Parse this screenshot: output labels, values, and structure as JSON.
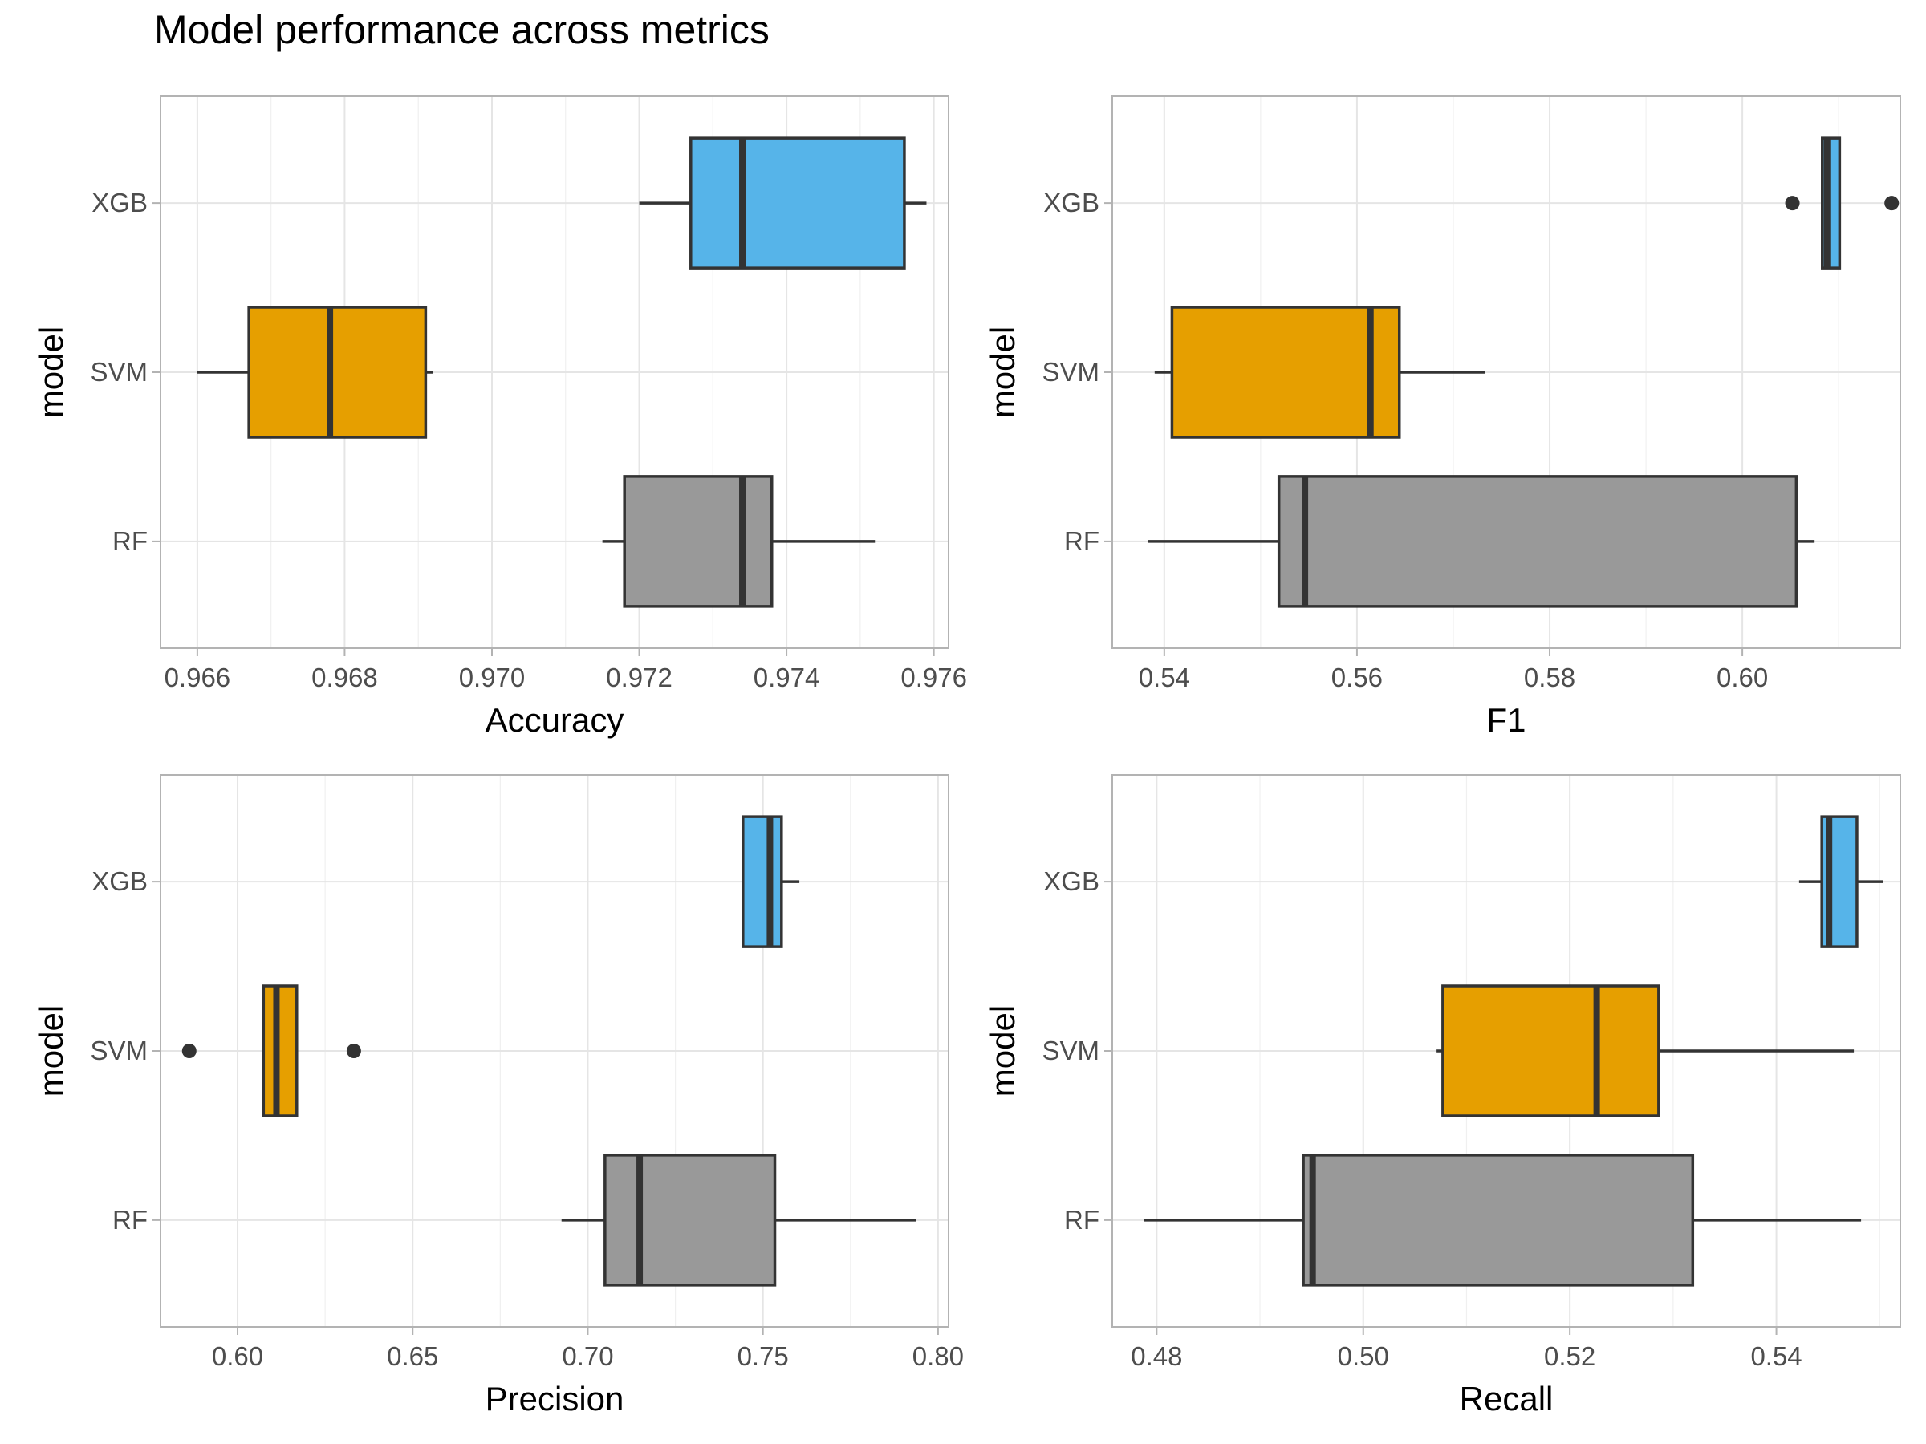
{
  "title": "Model performance across metrics",
  "colors": {
    "XGB": "#56B4E9",
    "SVM": "#E69F00",
    "RF": "#999999",
    "outline": "#333333",
    "grid": "#e5e5e5",
    "panel_border": "#b3b3b3"
  },
  "chart_data": [
    {
      "type": "box",
      "orientation": "horizontal",
      "xlabel": "Accuracy",
      "ylabel": "model",
      "xlim": [
        0.9655,
        0.9762
      ],
      "xticks": [
        0.966,
        0.968,
        0.97,
        0.972,
        0.974,
        0.976
      ],
      "xtick_labels": [
        "0.966",
        "0.968",
        "0.970",
        "0.972",
        "0.974",
        "0.976"
      ],
      "categories": [
        "XGB",
        "SVM",
        "RF"
      ],
      "boxes": [
        {
          "model": "XGB",
          "whisker_low": 0.972,
          "q1": 0.9727,
          "median": 0.9734,
          "q3": 0.9756,
          "whisker_high": 0.9759,
          "outliers": []
        },
        {
          "model": "SVM",
          "whisker_low": 0.966,
          "q1": 0.9667,
          "median": 0.9678,
          "q3": 0.9691,
          "whisker_high": 0.9692,
          "outliers": []
        },
        {
          "model": "RF",
          "whisker_low": 0.9715,
          "q1": 0.9718,
          "median": 0.9734,
          "q3": 0.9738,
          "whisker_high": 0.9752,
          "outliers": []
        }
      ]
    },
    {
      "type": "box",
      "orientation": "horizontal",
      "xlabel": "F1",
      "ylabel": "model",
      "xlim": [
        0.5346,
        0.6164
      ],
      "xticks": [
        0.54,
        0.56,
        0.58,
        0.6
      ],
      "xtick_labels": [
        "0.54",
        "0.56",
        "0.58",
        "0.60"
      ],
      "categories": [
        "XGB",
        "SVM",
        "RF"
      ],
      "boxes": [
        {
          "model": "XGB",
          "whisker_low": 0.6083,
          "q1": 0.6083,
          "median": 0.6088,
          "q3": 0.6101,
          "whisker_high": 0.6101,
          "outliers": [
            0.6052,
            0.6155
          ]
        },
        {
          "model": "SVM",
          "whisker_low": 0.539,
          "q1": 0.5408,
          "median": 0.5614,
          "q3": 0.5644,
          "whisker_high": 0.5733,
          "outliers": []
        },
        {
          "model": "RF",
          "whisker_low": 0.5383,
          "q1": 0.5519,
          "median": 0.5546,
          "q3": 0.6056,
          "whisker_high": 0.6075,
          "outliers": []
        }
      ]
    },
    {
      "type": "box",
      "orientation": "horizontal",
      "xlabel": "Precision",
      "ylabel": "model",
      "xlim": [
        0.578,
        0.803
      ],
      "xticks": [
        0.6,
        0.65,
        0.7,
        0.75,
        0.8
      ],
      "xtick_labels": [
        "0.60",
        "0.65",
        "0.70",
        "0.75",
        "0.80"
      ],
      "categories": [
        "XGB",
        "SVM",
        "RF"
      ],
      "boxes": [
        {
          "model": "XGB",
          "whisker_low": 0.7443,
          "q1": 0.7443,
          "median": 0.752,
          "q3": 0.7553,
          "whisker_high": 0.7604,
          "outliers": []
        },
        {
          "model": "SVM",
          "whisker_low": 0.6074,
          "q1": 0.6074,
          "median": 0.6111,
          "q3": 0.6169,
          "whisker_high": 0.6169,
          "outliers": [
            0.5862,
            0.6332
          ]
        },
        {
          "model": "RF",
          "whisker_low": 0.6925,
          "q1": 0.7049,
          "median": 0.7148,
          "q3": 0.7534,
          "whisker_high": 0.7938,
          "outliers": []
        }
      ]
    },
    {
      "type": "box",
      "orientation": "horizontal",
      "xlabel": "Recall",
      "ylabel": "model",
      "xlim": [
        0.4757,
        0.552
      ],
      "xticks": [
        0.48,
        0.5,
        0.52,
        0.54
      ],
      "xtick_labels": [
        "0.48",
        "0.50",
        "0.52",
        "0.54"
      ],
      "categories": [
        "XGB",
        "SVM",
        "RF"
      ],
      "boxes": [
        {
          "model": "XGB",
          "whisker_low": 0.5422,
          "q1": 0.5444,
          "median": 0.5451,
          "q3": 0.5478,
          "whisker_high": 0.5503,
          "outliers": []
        },
        {
          "model": "SVM",
          "whisker_low": 0.5071,
          "q1": 0.5077,
          "median": 0.5226,
          "q3": 0.5286,
          "whisker_high": 0.5475,
          "outliers": []
        },
        {
          "model": "RF",
          "whisker_low": 0.4788,
          "q1": 0.4942,
          "median": 0.4951,
          "q3": 0.5319,
          "whisker_high": 0.5482,
          "outliers": []
        }
      ]
    }
  ]
}
